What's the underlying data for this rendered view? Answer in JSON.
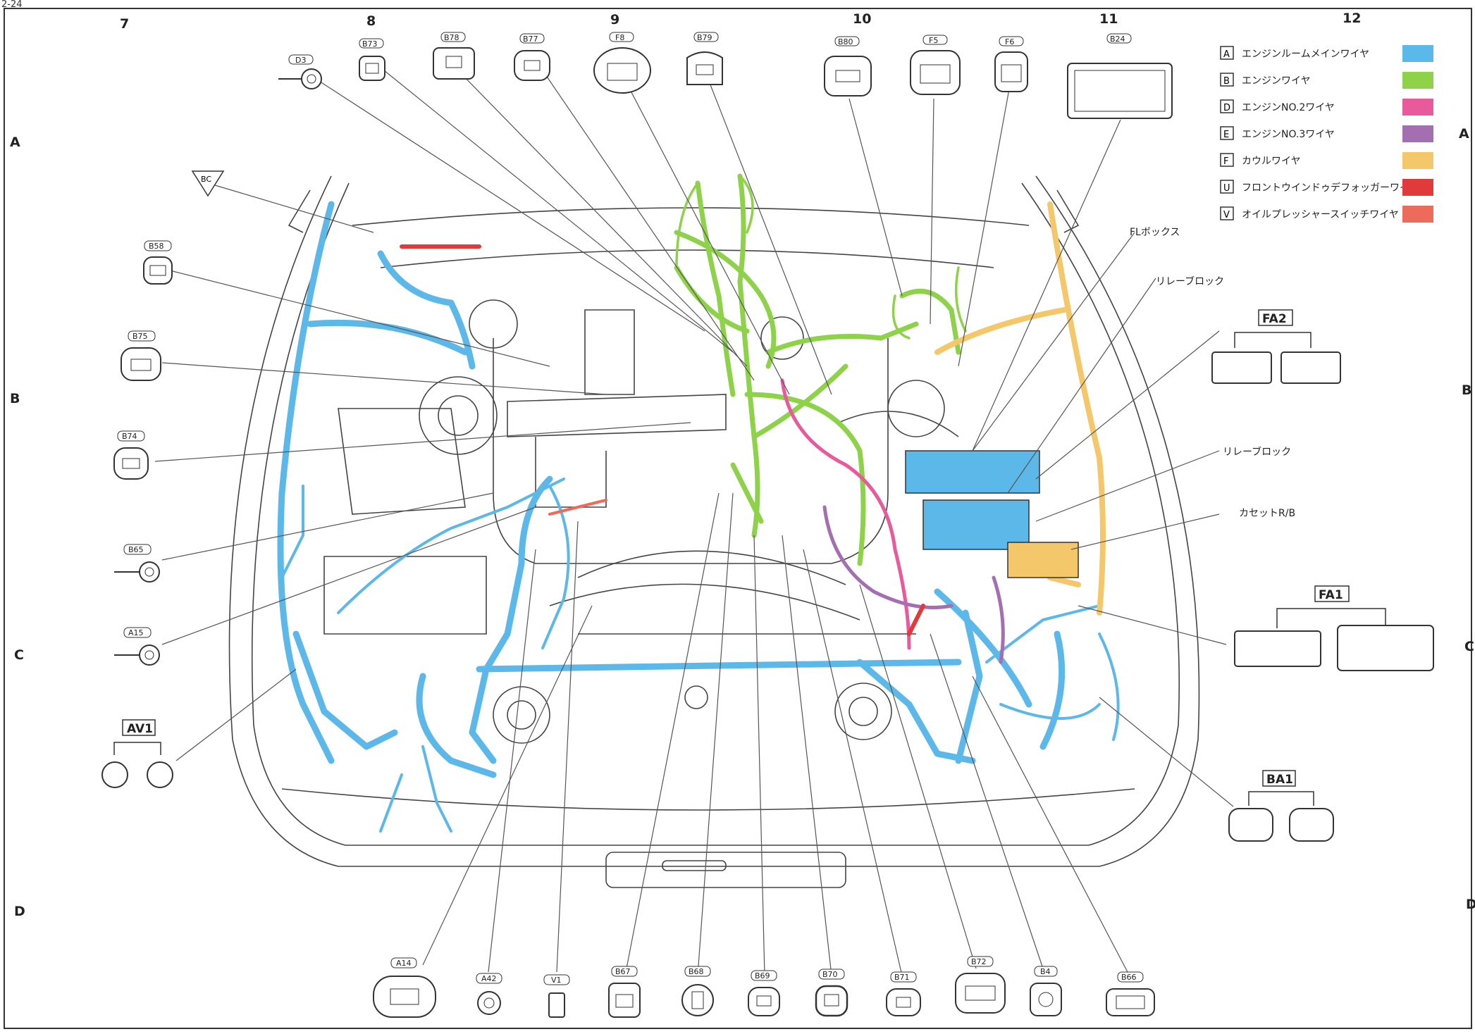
{
  "page_number": "2-24",
  "grid": {
    "columns": [
      "7",
      "8",
      "9",
      "10",
      "11",
      "12"
    ],
    "rows": [
      "A",
      "B",
      "C",
      "D"
    ]
  },
  "legend": [
    {
      "code": "A",
      "label": "エンジンルームメインワイヤ",
      "color": "#5bb8e8"
    },
    {
      "code": "B",
      "label": "エンジンワイヤ",
      "color": "#8ed24a"
    },
    {
      "code": "D",
      "label": "エンジンNO.2ワイヤ",
      "color": "#e85a9c"
    },
    {
      "code": "E",
      "label": "エンジンNO.3ワイヤ",
      "color": "#a46fb0"
    },
    {
      "code": "F",
      "label": "カウルワイヤ",
      "color": "#f4c86a"
    },
    {
      "code": "U",
      "label": "フロントウインドゥデフォッガーワイヤ",
      "color": "#e03a3a"
    },
    {
      "code": "V",
      "label": "オイルプレッシャースイッチワイヤ",
      "color": "#ee6a5a"
    }
  ],
  "callouts": {
    "fl_box": "FLボックス",
    "relay_block_1": "リレーブロック",
    "relay_block_2": "リレーブロック",
    "cassette_rb": "カセットR/B"
  },
  "ground_marker": "BC",
  "connector_groups": {
    "fa2": "FA2",
    "fa1": "FA1",
    "ba1": "BA1",
    "av1": "AV1"
  },
  "top_connectors": [
    "D3",
    "B73",
    "B78",
    "B77",
    "F8",
    "B79",
    "B80",
    "F5",
    "F6",
    "B24"
  ],
  "left_connectors": [
    "B58",
    "B75",
    "B74",
    "B65",
    "A15"
  ],
  "bottom_connectors": [
    "A14",
    "A42",
    "V1",
    "B67",
    "B68",
    "B69",
    "B70",
    "B71",
    "B72",
    "B4",
    "B66"
  ]
}
